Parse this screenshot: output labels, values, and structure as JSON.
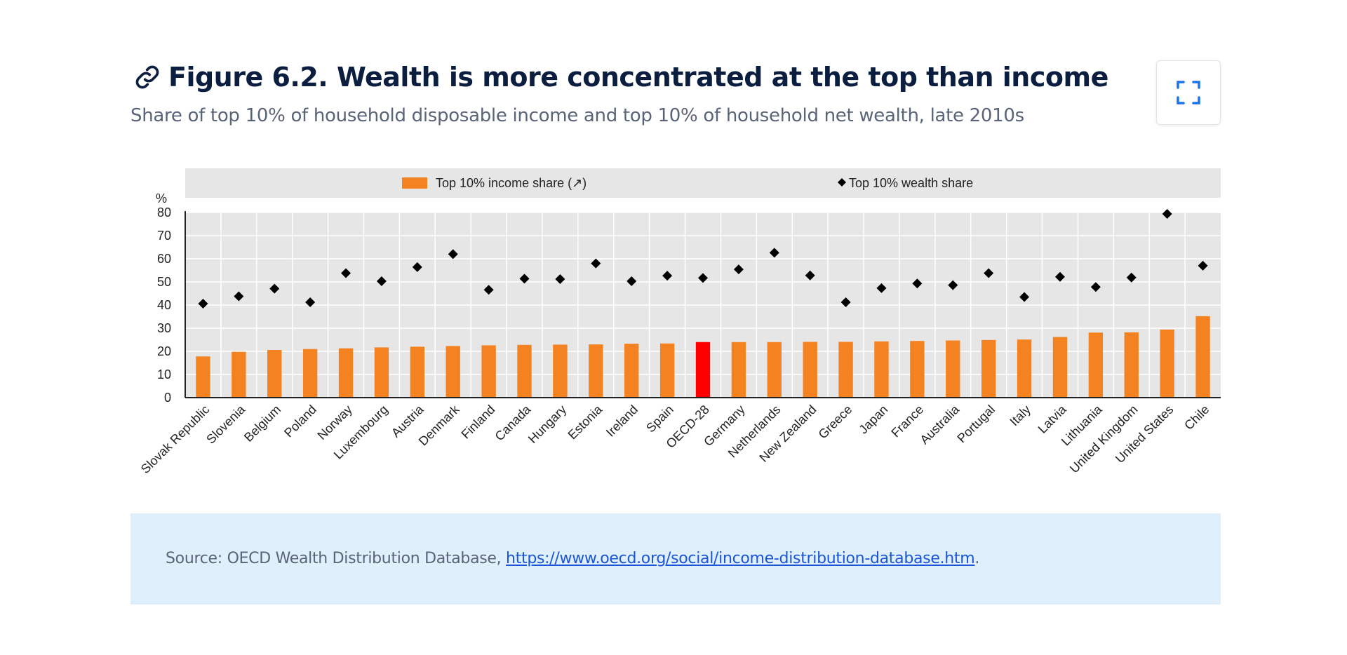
{
  "figure": {
    "title": "Figure 6.2. Wealth is more concentrated at the top than income",
    "subtitle": "Share of top 10% of household disposable income and top 10% of household net wealth, late 2010s"
  },
  "icons": {
    "link": "link-icon",
    "expand": "expand-icon"
  },
  "colors": {
    "bar": "#f58220",
    "highlight_bar": "#ff0000",
    "marker": "#000000",
    "grid_bg": "#e6e6e6",
    "legend_bg": "#e6e6e6"
  },
  "source": {
    "prefix": "Source: OECD Wealth Distribution Database, ",
    "link_text": "https://www.oecd.org/social/income-distribution-database.htm",
    "suffix": "."
  },
  "chart_data": {
    "type": "bar",
    "y_unit_label": "%",
    "ylim": [
      0,
      80
    ],
    "yticks": [
      "0",
      "10",
      "20",
      "30",
      "40",
      "50",
      "60",
      "70",
      "80"
    ],
    "grid": true,
    "legend_position": "top",
    "highlight_category": "OECD-28",
    "categories": [
      "Slovak Republic",
      "Slovenia",
      "Belgium",
      "Poland",
      "Norway",
      "Luxembourg",
      "Austria",
      "Denmark",
      "Finland",
      "Canada",
      "Hungary",
      "Estonia",
      "Ireland",
      "Spain",
      "OECD-28",
      "Germany",
      "Netherlands",
      "New Zealand",
      "Greece",
      "Japan",
      "France",
      "Australia",
      "Portugal",
      "Italy",
      "Latvia",
      "Lithuania",
      "United Kingdom",
      "United States",
      "Chile"
    ],
    "series": [
      {
        "name": "Top 10% income share (↗)",
        "type": "bar",
        "values": [
          17.8,
          19.8,
          20.6,
          21.0,
          21.3,
          21.7,
          22.0,
          22.3,
          22.6,
          22.8,
          22.9,
          23.0,
          23.3,
          23.4,
          24.0,
          24.0,
          24.0,
          24.1,
          24.1,
          24.3,
          24.5,
          24.7,
          24.9,
          25.1,
          26.2,
          28.1,
          28.2,
          29.4,
          35.2
        ]
      },
      {
        "name": "Top 10% wealth share",
        "type": "scatter",
        "values": [
          40.6,
          43.8,
          47.1,
          41.2,
          53.8,
          50.3,
          56.4,
          62.0,
          46.6,
          51.4,
          51.2,
          58.0,
          50.3,
          52.7,
          51.7,
          55.4,
          62.6,
          52.8,
          41.2,
          47.3,
          49.3,
          48.6,
          53.8,
          43.5,
          52.2,
          47.8,
          51.9,
          79.4,
          57.0
        ]
      }
    ]
  }
}
